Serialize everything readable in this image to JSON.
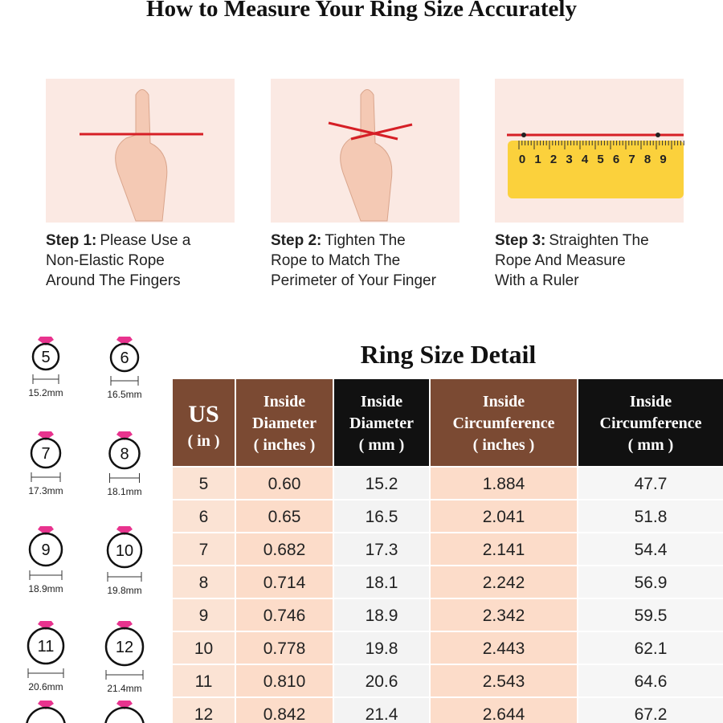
{
  "header": {
    "title": "How to Measure Your Ring Size Accurately"
  },
  "steps": [
    {
      "label": "Step 1:",
      "lines": [
        "Please Use a",
        "Non-Elastic Rope",
        "Around The Fingers"
      ]
    },
    {
      "label": "Step 2:",
      "lines": [
        "Tighten The",
        "Rope to Match The",
        "Perimeter of Your Finger"
      ]
    },
    {
      "label": "Step 3:",
      "lines": [
        "Straighten The",
        "Rope And Measure",
        "With a Ruler"
      ]
    }
  ],
  "ruler_digits": [
    "0",
    "1",
    "2",
    "3",
    "4",
    "5",
    "6",
    "7",
    "8",
    "9"
  ],
  "rings": [
    {
      "size": "5",
      "mm": "15.2mm"
    },
    {
      "size": "6",
      "mm": "16.5mm"
    },
    {
      "size": "7",
      "mm": "17.3mm"
    },
    {
      "size": "8",
      "mm": "18.1mm"
    },
    {
      "size": "9",
      "mm": "18.9mm"
    },
    {
      "size": "10",
      "mm": "19.8mm"
    },
    {
      "size": "11",
      "mm": "20.6mm"
    },
    {
      "size": "12",
      "mm": "21.4mm"
    }
  ],
  "table": {
    "title": "Ring Size Detail",
    "headers": [
      [
        "US",
        "( in )"
      ],
      [
        "Inside",
        "Diameter",
        "( inches )"
      ],
      [
        "Inside",
        "Diameter",
        "( mm )"
      ],
      [
        "Inside",
        "Circumference",
        "( inches )"
      ],
      [
        "Inside",
        "Circumference",
        "( mm )"
      ]
    ],
    "rows": [
      [
        "5",
        "0.60",
        "15.2",
        "1.884",
        "47.7"
      ],
      [
        "6",
        "0.65",
        "16.5",
        "2.041",
        "51.8"
      ],
      [
        "7",
        "0.682",
        "17.3",
        "2.141",
        "54.4"
      ],
      [
        "8",
        "0.714",
        "18.1",
        "2.242",
        "56.9"
      ],
      [
        "9",
        "0.746",
        "18.9",
        "2.342",
        "59.5"
      ],
      [
        "10",
        "0.778",
        "19.8",
        "2.443",
        "62.1"
      ],
      [
        "11",
        "0.810",
        "20.6",
        "2.543",
        "64.6"
      ],
      [
        "12",
        "0.842",
        "21.4",
        "2.644",
        "67.2"
      ]
    ]
  }
}
